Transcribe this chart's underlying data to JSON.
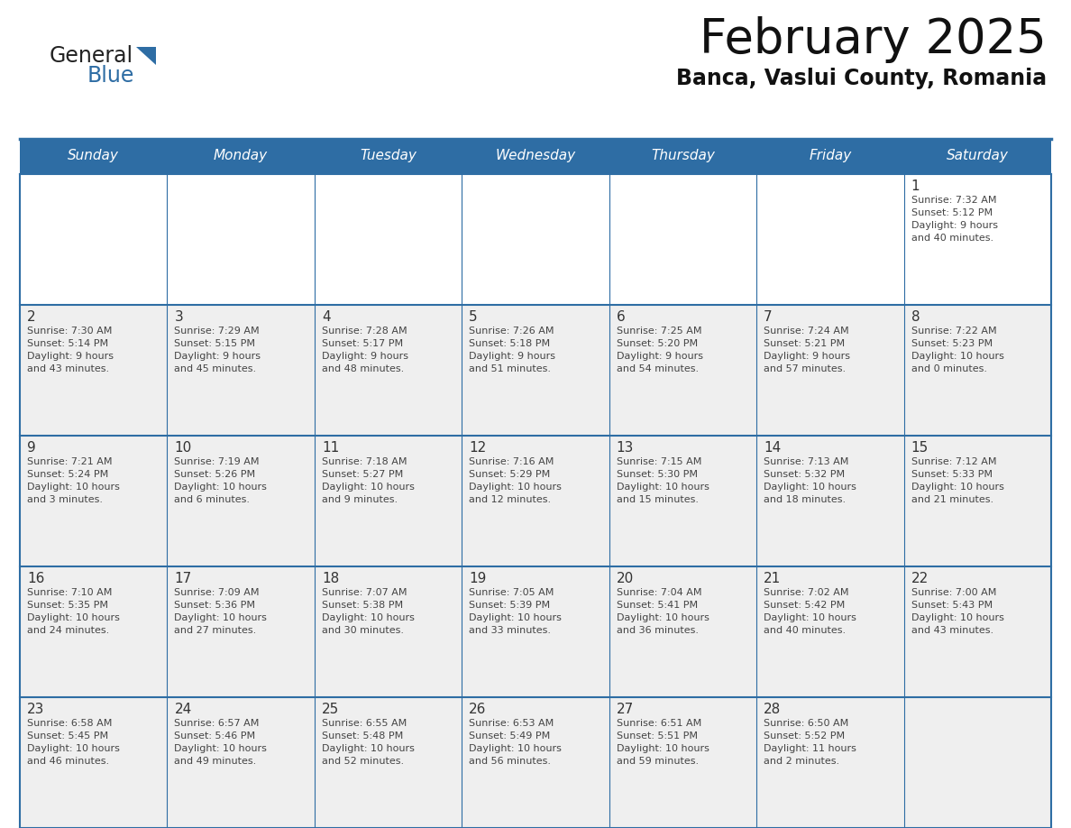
{
  "title": "February 2025",
  "subtitle": "Banca, Vaslui County, Romania",
  "header_bg": "#2E6DA4",
  "header_text_color": "#FFFFFF",
  "cell_bg_odd": "#EFEFEF",
  "cell_bg_even": "#FFFFFF",
  "cell_bg_first": "#FFFFFF",
  "day_number_color": "#333333",
  "text_color": "#444444",
  "border_color": "#2E6DA4",
  "logo_general_color": "#222222",
  "logo_blue_color": "#2E6DA4",
  "logo_triangle_color": "#2E6DA4",
  "days_of_week": [
    "Sunday",
    "Monday",
    "Tuesday",
    "Wednesday",
    "Thursday",
    "Friday",
    "Saturday"
  ],
  "calendar_data": [
    [
      null,
      null,
      null,
      null,
      null,
      null,
      {
        "day": "1",
        "sunrise": "7:32 AM",
        "sunset": "5:12 PM",
        "daylight_line1": "Daylight: 9 hours",
        "daylight_line2": "and 40 minutes."
      }
    ],
    [
      {
        "day": "2",
        "sunrise": "7:30 AM",
        "sunset": "5:14 PM",
        "daylight_line1": "Daylight: 9 hours",
        "daylight_line2": "and 43 minutes."
      },
      {
        "day": "3",
        "sunrise": "7:29 AM",
        "sunset": "5:15 PM",
        "daylight_line1": "Daylight: 9 hours",
        "daylight_line2": "and 45 minutes."
      },
      {
        "day": "4",
        "sunrise": "7:28 AM",
        "sunset": "5:17 PM",
        "daylight_line1": "Daylight: 9 hours",
        "daylight_line2": "and 48 minutes."
      },
      {
        "day": "5",
        "sunrise": "7:26 AM",
        "sunset": "5:18 PM",
        "daylight_line1": "Daylight: 9 hours",
        "daylight_line2": "and 51 minutes."
      },
      {
        "day": "6",
        "sunrise": "7:25 AM",
        "sunset": "5:20 PM",
        "daylight_line1": "Daylight: 9 hours",
        "daylight_line2": "and 54 minutes."
      },
      {
        "day": "7",
        "sunrise": "7:24 AM",
        "sunset": "5:21 PM",
        "daylight_line1": "Daylight: 9 hours",
        "daylight_line2": "and 57 minutes."
      },
      {
        "day": "8",
        "sunrise": "7:22 AM",
        "sunset": "5:23 PM",
        "daylight_line1": "Daylight: 10 hours",
        "daylight_line2": "and 0 minutes."
      }
    ],
    [
      {
        "day": "9",
        "sunrise": "7:21 AM",
        "sunset": "5:24 PM",
        "daylight_line1": "Daylight: 10 hours",
        "daylight_line2": "and 3 minutes."
      },
      {
        "day": "10",
        "sunrise": "7:19 AM",
        "sunset": "5:26 PM",
        "daylight_line1": "Daylight: 10 hours",
        "daylight_line2": "and 6 minutes."
      },
      {
        "day": "11",
        "sunrise": "7:18 AM",
        "sunset": "5:27 PM",
        "daylight_line1": "Daylight: 10 hours",
        "daylight_line2": "and 9 minutes."
      },
      {
        "day": "12",
        "sunrise": "7:16 AM",
        "sunset": "5:29 PM",
        "daylight_line1": "Daylight: 10 hours",
        "daylight_line2": "and 12 minutes."
      },
      {
        "day": "13",
        "sunrise": "7:15 AM",
        "sunset": "5:30 PM",
        "daylight_line1": "Daylight: 10 hours",
        "daylight_line2": "and 15 minutes."
      },
      {
        "day": "14",
        "sunrise": "7:13 AM",
        "sunset": "5:32 PM",
        "daylight_line1": "Daylight: 10 hours",
        "daylight_line2": "and 18 minutes."
      },
      {
        "day": "15",
        "sunrise": "7:12 AM",
        "sunset": "5:33 PM",
        "daylight_line1": "Daylight: 10 hours",
        "daylight_line2": "and 21 minutes."
      }
    ],
    [
      {
        "day": "16",
        "sunrise": "7:10 AM",
        "sunset": "5:35 PM",
        "daylight_line1": "Daylight: 10 hours",
        "daylight_line2": "and 24 minutes."
      },
      {
        "day": "17",
        "sunrise": "7:09 AM",
        "sunset": "5:36 PM",
        "daylight_line1": "Daylight: 10 hours",
        "daylight_line2": "and 27 minutes."
      },
      {
        "day": "18",
        "sunrise": "7:07 AM",
        "sunset": "5:38 PM",
        "daylight_line1": "Daylight: 10 hours",
        "daylight_line2": "and 30 minutes."
      },
      {
        "day": "19",
        "sunrise": "7:05 AM",
        "sunset": "5:39 PM",
        "daylight_line1": "Daylight: 10 hours",
        "daylight_line2": "and 33 minutes."
      },
      {
        "day": "20",
        "sunrise": "7:04 AM",
        "sunset": "5:41 PM",
        "daylight_line1": "Daylight: 10 hours",
        "daylight_line2": "and 36 minutes."
      },
      {
        "day": "21",
        "sunrise": "7:02 AM",
        "sunset": "5:42 PM",
        "daylight_line1": "Daylight: 10 hours",
        "daylight_line2": "and 40 minutes."
      },
      {
        "day": "22",
        "sunrise": "7:00 AM",
        "sunset": "5:43 PM",
        "daylight_line1": "Daylight: 10 hours",
        "daylight_line2": "and 43 minutes."
      }
    ],
    [
      {
        "day": "23",
        "sunrise": "6:58 AM",
        "sunset": "5:45 PM",
        "daylight_line1": "Daylight: 10 hours",
        "daylight_line2": "and 46 minutes."
      },
      {
        "day": "24",
        "sunrise": "6:57 AM",
        "sunset": "5:46 PM",
        "daylight_line1": "Daylight: 10 hours",
        "daylight_line2": "and 49 minutes."
      },
      {
        "day": "25",
        "sunrise": "6:55 AM",
        "sunset": "5:48 PM",
        "daylight_line1": "Daylight: 10 hours",
        "daylight_line2": "and 52 minutes."
      },
      {
        "day": "26",
        "sunrise": "6:53 AM",
        "sunset": "5:49 PM",
        "daylight_line1": "Daylight: 10 hours",
        "daylight_line2": "and 56 minutes."
      },
      {
        "day": "27",
        "sunrise": "6:51 AM",
        "sunset": "5:51 PM",
        "daylight_line1": "Daylight: 10 hours",
        "daylight_line2": "and 59 minutes."
      },
      {
        "day": "28",
        "sunrise": "6:50 AM",
        "sunset": "5:52 PM",
        "daylight_line1": "Daylight: 11 hours",
        "daylight_line2": "and 2 minutes."
      },
      null
    ]
  ]
}
